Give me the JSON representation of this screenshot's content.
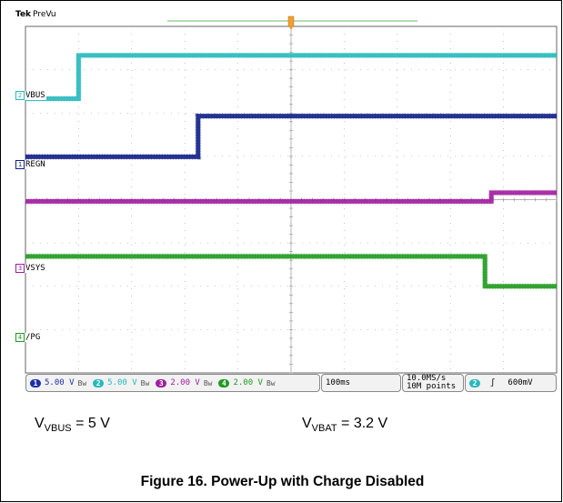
{
  "scope": {
    "brand": "Tek",
    "mode": "PreVu"
  },
  "chart_data": {
    "type": "line",
    "title": "Figure 16. Power-Up with Charge Disabled",
    "x_unit": "div",
    "x_range": [
      0,
      10
    ],
    "y_range_div": [
      -4,
      4
    ],
    "grid": true,
    "horizontal_divisions": 10,
    "vertical_divisions": 8,
    "series": [
      {
        "name": "VBUS",
        "channel": "2",
        "color": "#27b9bd",
        "volts_per_div": "5.00 V",
        "ground_div": 2.33,
        "points": [
          [
            0,
            2.33
          ],
          [
            1.0,
            2.33
          ],
          [
            1.0,
            3.33
          ],
          [
            10,
            3.33
          ]
        ]
      },
      {
        "name": "REGN",
        "channel": "1",
        "color": "#0f1f87",
        "volts_per_div": "5.00 V",
        "ground_div": 0.99,
        "points": [
          [
            0,
            0.99
          ],
          [
            3.25,
            0.99
          ],
          [
            3.25,
            1.93
          ],
          [
            10,
            1.93
          ]
        ]
      },
      {
        "name": "VSYS",
        "channel": "3",
        "color": "#a01ca0",
        "volts_per_div": "2.00 V",
        "ground_div": -1.75,
        "points": [
          [
            0,
            -0.04
          ],
          [
            8.77,
            -0.04
          ],
          [
            8.77,
            0.16
          ],
          [
            10,
            0.16
          ]
        ]
      },
      {
        "name": "/PG",
        "channel": "4",
        "color": "#1f9a1f",
        "volts_per_div": "2.00 V",
        "ground_div": -3.31,
        "points": [
          [
            0,
            -1.31
          ],
          [
            8.65,
            -1.31
          ],
          [
            8.65,
            -2.0
          ],
          [
            10,
            -2.0
          ]
        ]
      }
    ]
  },
  "status_bar": {
    "channels": [
      {
        "num": "1",
        "value": "5.00 V",
        "bw": "Bw",
        "color": "#1d2fa8"
      },
      {
        "num": "2",
        "value": "5.00 V",
        "bw": "Bw",
        "color": "#27b9bd"
      },
      {
        "num": "3",
        "value": "2.00 V",
        "bw": "Bw",
        "color": "#a01ca0"
      },
      {
        "num": "4",
        "value": "2.00 V",
        "bw": "Bw",
        "color": "#1f9a1f"
      }
    ],
    "timebase": "100ms",
    "sample_rate": "10.0MS/s",
    "record_length": "10M points",
    "trigger_channel": "2",
    "trigger_slope": "ʃ",
    "trigger_level": "600mV"
  },
  "captions": {
    "vbus_prefix": "V",
    "vbus_sub": "VBUS",
    "vbus_value": " = 5 V",
    "vbat_prefix": "V",
    "vbat_sub": "VBAT",
    "vbat_value": " = 3.2 V"
  }
}
